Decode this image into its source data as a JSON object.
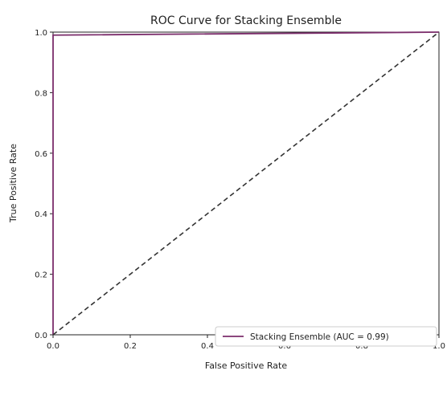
{
  "chart_data": {
    "type": "line",
    "title": "ROC Curve for Stacking Ensemble",
    "xlabel": "False Positive Rate",
    "ylabel": "True Positive Rate",
    "xlim": [
      0.0,
      1.0
    ],
    "ylim": [
      0.0,
      1.0
    ],
    "xticks": [
      "0.0",
      "0.2",
      "0.4",
      "0.6",
      "0.8",
      "1.0"
    ],
    "yticks": [
      "0.0",
      "0.2",
      "0.4",
      "0.6",
      "0.8",
      "1.0"
    ],
    "grid": false,
    "legend_position": "lower right",
    "series": [
      {
        "name": "Stacking Ensemble (AUC = 0.99)",
        "color": "#7b2d6b",
        "style": "solid",
        "x": [
          0.0,
          0.0,
          1.0
        ],
        "y": [
          0.0,
          0.99,
          1.0
        ]
      },
      {
        "color": "#333333",
        "style": "dashed",
        "x": [
          0.0,
          1.0
        ],
        "y": [
          0.0,
          1.0
        ]
      }
    ]
  }
}
